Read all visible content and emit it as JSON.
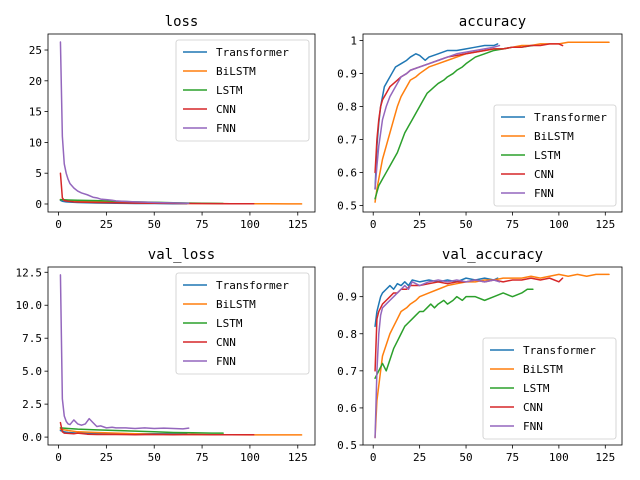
{
  "colors": {
    "Transformer": "#1f77b4",
    "BiLSTM": "#ff7f0e",
    "LSTM": "#2ca02c",
    "CNN": "#d62728",
    "FNN": "#9467bd"
  },
  "chart_data": [
    {
      "type": "line",
      "title": "loss",
      "xlabel": "",
      "ylabel": "",
      "xlim": [
        -5.5,
        134
      ],
      "ylim": [
        -1.3,
        27.6
      ],
      "xticks": [
        0,
        25,
        50,
        75,
        100,
        125
      ],
      "yticks": [
        0,
        5,
        10,
        15,
        20,
        25
      ],
      "legend_position": "top-right",
      "series": [
        {
          "name": "Transformer",
          "x": [
            1,
            2,
            4,
            6,
            10,
            15,
            20,
            30,
            40,
            50,
            60,
            67
          ],
          "y": [
            0.6,
            0.45,
            0.35,
            0.3,
            0.25,
            0.2,
            0.17,
            0.12,
            0.09,
            0.07,
            0.05,
            0.04
          ]
        },
        {
          "name": "BiLSTM",
          "x": [
            1,
            5,
            10,
            20,
            30,
            40,
            50,
            60,
            70,
            80,
            90,
            100,
            110,
            120,
            127
          ],
          "y": [
            0.7,
            0.6,
            0.5,
            0.4,
            0.3,
            0.22,
            0.16,
            0.12,
            0.09,
            0.07,
            0.05,
            0.04,
            0.03,
            0.02,
            0.02
          ]
        },
        {
          "name": "LSTM",
          "x": [
            1,
            5,
            10,
            20,
            30,
            40,
            50,
            60,
            70,
            80,
            86
          ],
          "y": [
            0.7,
            0.65,
            0.6,
            0.55,
            0.45,
            0.35,
            0.28,
            0.2,
            0.15,
            0.1,
            0.09
          ]
        },
        {
          "name": "CNN",
          "x": [
            1,
            2,
            3,
            5,
            8,
            12,
            20,
            30,
            40,
            50,
            60,
            70,
            80,
            90,
            102
          ],
          "y": [
            5.0,
            1.0,
            0.55,
            0.45,
            0.35,
            0.3,
            0.25,
            0.2,
            0.15,
            0.12,
            0.1,
            0.08,
            0.06,
            0.05,
            0.04
          ]
        },
        {
          "name": "FNN",
          "x": [
            1,
            2,
            3,
            4,
            5,
            6,
            8,
            10,
            12,
            15,
            18,
            20,
            22,
            25,
            28,
            30,
            33,
            36,
            40,
            45,
            50,
            55,
            60,
            65,
            68
          ],
          "y": [
            26.3,
            11.0,
            6.5,
            5.0,
            4.0,
            3.3,
            2.6,
            2.1,
            1.8,
            1.5,
            1.1,
            1.0,
            0.8,
            0.7,
            0.6,
            0.5,
            0.45,
            0.4,
            0.35,
            0.3,
            0.25,
            0.2,
            0.18,
            0.15,
            0.12
          ]
        }
      ]
    },
    {
      "type": "line",
      "title": "accuracy",
      "xlabel": "",
      "ylabel": "",
      "xlim": [
        -5.5,
        134
      ],
      "ylim": [
        0.48,
        1.02
      ],
      "xticks": [
        0,
        25,
        50,
        75,
        100,
        125
      ],
      "yticks": [
        0.5,
        0.6,
        0.7,
        0.8,
        0.9,
        1.0
      ],
      "legend_position": "bottom-right",
      "series": [
        {
          "name": "Transformer",
          "x": [
            1,
            2,
            3,
            4,
            5,
            6,
            8,
            10,
            12,
            15,
            18,
            20,
            23,
            25,
            28,
            30,
            35,
            40,
            45,
            50,
            55,
            60,
            65,
            67
          ],
          "y": [
            0.55,
            0.68,
            0.75,
            0.8,
            0.83,
            0.86,
            0.88,
            0.9,
            0.92,
            0.93,
            0.94,
            0.95,
            0.96,
            0.955,
            0.94,
            0.95,
            0.96,
            0.97,
            0.97,
            0.975,
            0.98,
            0.985,
            0.985,
            0.99
          ]
        },
        {
          "name": "BiLSTM",
          "x": [
            1,
            2,
            3,
            4,
            5,
            7,
            9,
            11,
            13,
            15,
            18,
            20,
            23,
            25,
            30,
            35,
            40,
            45,
            50,
            55,
            60,
            65,
            70,
            75,
            80,
            85,
            90,
            95,
            100,
            105,
            110,
            115,
            120,
            127
          ],
          "y": [
            0.51,
            0.55,
            0.58,
            0.61,
            0.64,
            0.68,
            0.72,
            0.76,
            0.8,
            0.83,
            0.86,
            0.88,
            0.89,
            0.9,
            0.92,
            0.93,
            0.94,
            0.95,
            0.96,
            0.965,
            0.97,
            0.975,
            0.975,
            0.98,
            0.985,
            0.985,
            0.99,
            0.99,
            0.99,
            0.995,
            0.995,
            0.995,
            0.995,
            0.995
          ]
        },
        {
          "name": "LSTM",
          "x": [
            1,
            3,
            5,
            7,
            9,
            11,
            13,
            15,
            17,
            19,
            21,
            23,
            25,
            27,
            29,
            31,
            33,
            35,
            38,
            40,
            43,
            45,
            48,
            50,
            55,
            60,
            65,
            70,
            75,
            80,
            86
          ],
          "y": [
            0.52,
            0.56,
            0.58,
            0.6,
            0.62,
            0.64,
            0.66,
            0.69,
            0.72,
            0.74,
            0.76,
            0.78,
            0.8,
            0.82,
            0.84,
            0.85,
            0.86,
            0.87,
            0.88,
            0.89,
            0.9,
            0.91,
            0.92,
            0.93,
            0.95,
            0.96,
            0.97,
            0.975,
            0.98,
            0.98,
            0.985
          ]
        },
        {
          "name": "CNN",
          "x": [
            1,
            2,
            3,
            4,
            5,
            7,
            9,
            11,
            13,
            15,
            18,
            20,
            25,
            30,
            35,
            40,
            45,
            50,
            55,
            60,
            65,
            70,
            75,
            80,
            85,
            90,
            95,
            100,
            102
          ],
          "y": [
            0.6,
            0.7,
            0.76,
            0.8,
            0.82,
            0.84,
            0.86,
            0.87,
            0.88,
            0.89,
            0.9,
            0.91,
            0.92,
            0.93,
            0.94,
            0.95,
            0.955,
            0.96,
            0.965,
            0.97,
            0.975,
            0.975,
            0.98,
            0.98,
            0.985,
            0.985,
            0.99,
            0.99,
            0.985
          ]
        },
        {
          "name": "FNN",
          "x": [
            1,
            2,
            3,
            4,
            5,
            7,
            9,
            11,
            13,
            15,
            18,
            20,
            25,
            30,
            35,
            40,
            45,
            50,
            55,
            60,
            65,
            68
          ],
          "y": [
            0.55,
            0.62,
            0.68,
            0.72,
            0.76,
            0.8,
            0.83,
            0.85,
            0.87,
            0.89,
            0.9,
            0.91,
            0.92,
            0.93,
            0.94,
            0.95,
            0.96,
            0.965,
            0.97,
            0.975,
            0.98,
            0.985
          ]
        }
      ]
    },
    {
      "type": "line",
      "title": "val_loss",
      "xlabel": "",
      "ylabel": "",
      "xlim": [
        -5.5,
        134
      ],
      "ylim": [
        -0.6,
        12.9
      ],
      "xticks": [
        0,
        25,
        50,
        75,
        100,
        125
      ],
      "yticks": [
        0.0,
        2.5,
        5.0,
        7.5,
        10.0,
        12.5
      ],
      "ytick_labels": [
        "0.0",
        "2.5",
        "5.0",
        "7.5",
        "10.0",
        "12.5"
      ],
      "legend_position": "top-right",
      "series": [
        {
          "name": "Transformer",
          "x": [
            1,
            3,
            5,
            10,
            15,
            20,
            30,
            40,
            50,
            60,
            67
          ],
          "y": [
            0.5,
            0.4,
            0.35,
            0.3,
            0.28,
            0.27,
            0.25,
            0.25,
            0.25,
            0.26,
            0.26
          ]
        },
        {
          "name": "BiLSTM",
          "x": [
            1,
            5,
            10,
            20,
            30,
            40,
            50,
            60,
            70,
            80,
            90,
            100,
            110,
            120,
            127
          ],
          "y": [
            0.6,
            0.5,
            0.4,
            0.35,
            0.3,
            0.25,
            0.22,
            0.2,
            0.2,
            0.18,
            0.18,
            0.17,
            0.17,
            0.17,
            0.17
          ]
        },
        {
          "name": "LSTM",
          "x": [
            1,
            5,
            10,
            20,
            30,
            40,
            50,
            60,
            70,
            80,
            86
          ],
          "y": [
            0.7,
            0.65,
            0.6,
            0.55,
            0.5,
            0.45,
            0.4,
            0.35,
            0.33,
            0.3,
            0.3
          ]
        },
        {
          "name": "CNN",
          "x": [
            1,
            2,
            3,
            5,
            8,
            10,
            15,
            20,
            30,
            40,
            50,
            60,
            70,
            80,
            90,
            102
          ],
          "y": [
            1.1,
            0.4,
            0.3,
            0.28,
            0.25,
            0.3,
            0.22,
            0.2,
            0.2,
            0.18,
            0.2,
            0.18,
            0.2,
            0.18,
            0.18,
            0.18
          ]
        },
        {
          "name": "FNN",
          "x": [
            1,
            2,
            3,
            4,
            5,
            6,
            8,
            10,
            12,
            14,
            16,
            18,
            20,
            22,
            25,
            28,
            30,
            35,
            40,
            45,
            50,
            55,
            60,
            65,
            68
          ],
          "y": [
            12.3,
            2.9,
            1.6,
            1.2,
            1.0,
            0.95,
            1.3,
            1.0,
            0.9,
            1.0,
            1.4,
            1.1,
            0.8,
            0.85,
            0.7,
            0.75,
            0.7,
            0.7,
            0.65,
            0.7,
            0.65,
            0.68,
            0.65,
            0.62,
            0.68
          ]
        }
      ]
    },
    {
      "type": "line",
      "title": "val_accuracy",
      "xlabel": "",
      "ylabel": "",
      "xlim": [
        -5.5,
        134
      ],
      "ylim": [
        0.5,
        0.98
      ],
      "xticks": [
        0,
        25,
        50,
        75,
        100,
        125
      ],
      "yticks": [
        0.5,
        0.6,
        0.7,
        0.8,
        0.9
      ],
      "legend_position": "bottom-right",
      "series": [
        {
          "name": "Transformer",
          "x": [
            1,
            2,
            3,
            4,
            5,
            7,
            9,
            11,
            13,
            15,
            17,
            19,
            21,
            25,
            30,
            35,
            40,
            45,
            50,
            55,
            60,
            65,
            67
          ],
          "y": [
            0.82,
            0.86,
            0.88,
            0.9,
            0.91,
            0.92,
            0.93,
            0.92,
            0.935,
            0.93,
            0.94,
            0.93,
            0.945,
            0.94,
            0.945,
            0.94,
            0.945,
            0.94,
            0.95,
            0.945,
            0.95,
            0.945,
            0.95
          ]
        },
        {
          "name": "BiLSTM",
          "x": [
            1,
            2,
            3,
            4,
            5,
            7,
            9,
            11,
            13,
            15,
            18,
            20,
            23,
            25,
            30,
            35,
            40,
            45,
            50,
            55,
            60,
            65,
            70,
            75,
            80,
            85,
            90,
            95,
            100,
            105,
            110,
            115,
            120,
            125,
            127
          ],
          "y": [
            0.52,
            0.62,
            0.66,
            0.7,
            0.74,
            0.77,
            0.8,
            0.82,
            0.84,
            0.86,
            0.87,
            0.88,
            0.89,
            0.9,
            0.91,
            0.92,
            0.93,
            0.935,
            0.94,
            0.94,
            0.945,
            0.945,
            0.95,
            0.95,
            0.95,
            0.955,
            0.95,
            0.955,
            0.96,
            0.955,
            0.96,
            0.955,
            0.96,
            0.96,
            0.96
          ]
        },
        {
          "name": "LSTM",
          "x": [
            1,
            3,
            5,
            7,
            9,
            11,
            13,
            15,
            17,
            19,
            21,
            23,
            25,
            27,
            29,
            31,
            33,
            35,
            38,
            40,
            43,
            45,
            48,
            50,
            55,
            60,
            65,
            70,
            75,
            80,
            83,
            86
          ],
          "y": [
            0.68,
            0.7,
            0.72,
            0.7,
            0.73,
            0.76,
            0.78,
            0.8,
            0.82,
            0.83,
            0.84,
            0.85,
            0.86,
            0.86,
            0.87,
            0.88,
            0.87,
            0.88,
            0.89,
            0.88,
            0.89,
            0.9,
            0.89,
            0.9,
            0.9,
            0.89,
            0.9,
            0.91,
            0.9,
            0.91,
            0.92,
            0.92
          ]
        },
        {
          "name": "CNN",
          "x": [
            1,
            2,
            3,
            4,
            5,
            7,
            9,
            11,
            13,
            15,
            18,
            20,
            25,
            30,
            35,
            40,
            45,
            50,
            55,
            60,
            65,
            70,
            75,
            80,
            85,
            90,
            95,
            100,
            102
          ],
          "y": [
            0.7,
            0.84,
            0.86,
            0.87,
            0.88,
            0.89,
            0.9,
            0.91,
            0.91,
            0.92,
            0.92,
            0.93,
            0.93,
            0.935,
            0.94,
            0.935,
            0.94,
            0.94,
            0.945,
            0.94,
            0.945,
            0.94,
            0.945,
            0.945,
            0.95,
            0.945,
            0.95,
            0.94,
            0.95
          ]
        },
        {
          "name": "FNN",
          "x": [
            1,
            2,
            3,
            4,
            5,
            7,
            9,
            11,
            13,
            15,
            17,
            19,
            21,
            25,
            30,
            35,
            40,
            45,
            50,
            55,
            60,
            65,
            68
          ],
          "y": [
            0.52,
            0.7,
            0.8,
            0.85,
            0.87,
            0.88,
            0.89,
            0.9,
            0.91,
            0.92,
            0.93,
            0.92,
            0.94,
            0.93,
            0.94,
            0.945,
            0.94,
            0.945,
            0.94,
            0.945,
            0.94,
            0.945,
            0.94
          ]
        }
      ]
    }
  ]
}
